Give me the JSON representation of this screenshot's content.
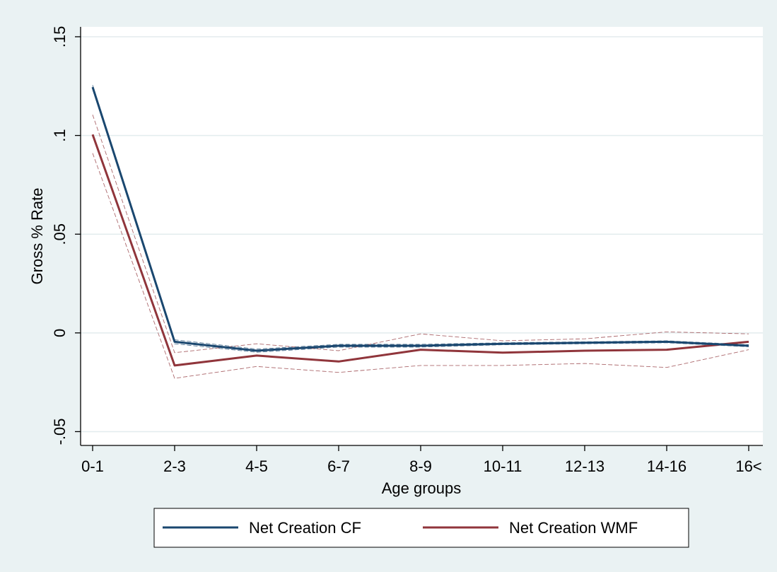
{
  "chart_data": {
    "type": "line",
    "title": "",
    "xlabel": "Age groups",
    "ylabel": "Gross % Rate",
    "categories": [
      "0-1",
      "2-3",
      "4-5",
      "6-7",
      "8-9",
      "10-11",
      "12-13",
      "14-16",
      "16<"
    ],
    "y_ticks": [
      ".15",
      ".1",
      ".05",
      "0",
      "-.05"
    ],
    "y_tick_values": [
      0.15,
      0.1,
      0.05,
      0,
      -0.05
    ],
    "ylim": [
      -0.057,
      0.155
    ],
    "grid": true,
    "legend_position": "bottom",
    "series": [
      {
        "name": "Net Creation CF",
        "color": "#1a476f",
        "values": [
          0.1245,
          -0.0045,
          -0.009,
          -0.0065,
          -0.0065,
          -0.0055,
          -0.005,
          -0.0045,
          -0.0065
        ],
        "ci_lower": [
          0.1235,
          -0.0055,
          -0.0098,
          -0.0072,
          -0.0072,
          -0.006,
          -0.0055,
          -0.005,
          -0.007
        ],
        "ci_upper": [
          0.1255,
          -0.0035,
          -0.0082,
          -0.0058,
          -0.0058,
          -0.005,
          -0.0045,
          -0.004,
          -0.006
        ]
      },
      {
        "name": "Net Creation WMF",
        "color": "#90353b",
        "values": [
          0.1005,
          -0.0165,
          -0.0115,
          -0.0145,
          -0.0085,
          -0.01,
          -0.009,
          -0.0085,
          -0.0045
        ],
        "ci_lower": [
          0.091,
          -0.023,
          -0.017,
          -0.02,
          -0.0165,
          -0.0165,
          -0.0155,
          -0.0175,
          -0.0085
        ],
        "ci_upper": [
          0.1105,
          -0.01,
          -0.0055,
          -0.009,
          -0.0005,
          -0.004,
          -0.003,
          0.0005,
          -0.0005
        ]
      }
    ]
  }
}
